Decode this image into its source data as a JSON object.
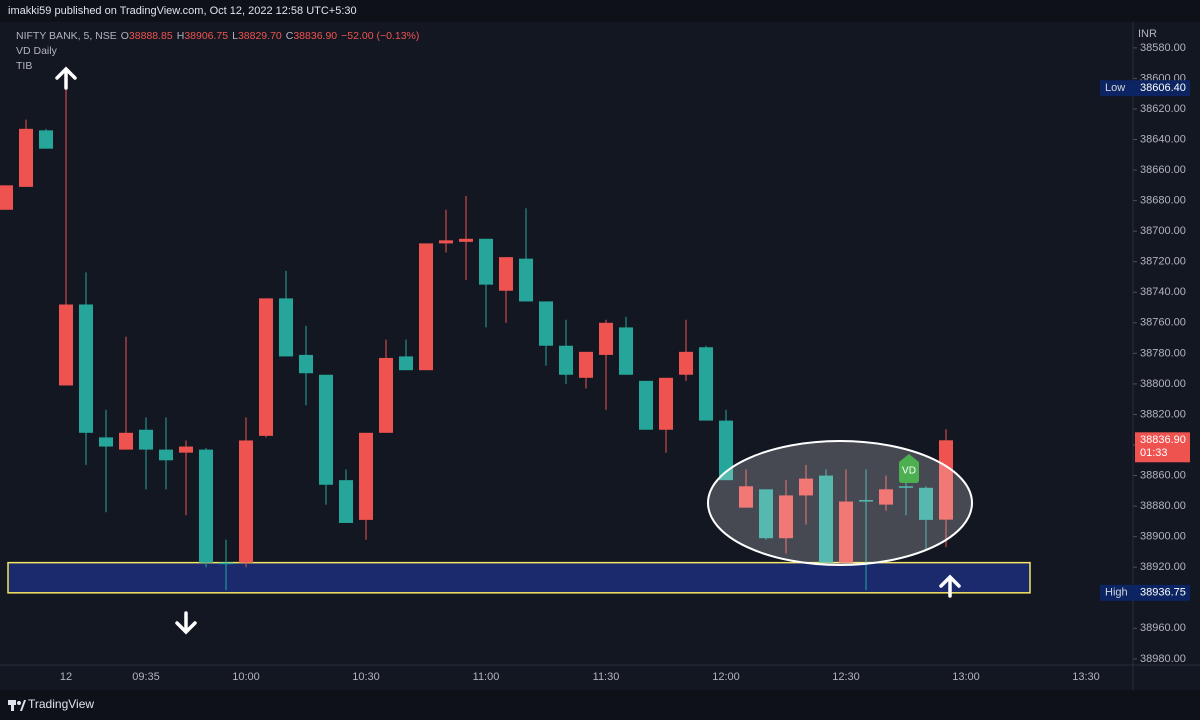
{
  "page": {
    "publisher": "imakki59 published on TradingView.com, Oct 12, 2022 12:58 UTC+5:30",
    "footer": "TradingView"
  },
  "legend": {
    "symbol": "NIFTY BANK, 5, NSE",
    "ohlc": [
      {
        "key": "O",
        "value": "38888.85"
      },
      {
        "key": "H",
        "value": "38906.75"
      },
      {
        "key": "L",
        "value": "38829.70"
      },
      {
        "key": "C",
        "value": "38836.90"
      }
    ],
    "change": "−52.00 (−0.13%)",
    "indicators": [
      "VD Daily",
      "TIB"
    ]
  },
  "chart_data": {
    "type": "candlestick",
    "axis_unit": "INR",
    "inverted": true,
    "up_color": "#26a69a",
    "down_color": "#ef5350",
    "categories": [
      null,
      null,
      null,
      "12",
      null,
      null,
      null,
      "09:35",
      null,
      null,
      null,
      null,
      "10:00",
      null,
      null,
      null,
      null,
      null,
      "10:30",
      null,
      null,
      null,
      null,
      null,
      "11:00",
      null,
      null,
      null,
      null,
      null,
      "11:30",
      null,
      null,
      null,
      null,
      null,
      "12:00",
      null,
      null,
      null,
      null,
      null,
      "12:30",
      null,
      null,
      null,
      null,
      null,
      "13:00",
      null,
      null,
      null,
      null,
      null,
      "13:30",
      null,
      null
    ],
    "open": [
      38686,
      38671,
      38634,
      38801,
      38748,
      38835,
      38843,
      38830,
      38843,
      38845,
      38843,
      38917,
      38917,
      38834,
      38744,
      38781,
      38794,
      38863,
      38889,
      38832,
      38782,
      38791,
      38708,
      38707,
      38705,
      38739,
      38718,
      38746,
      38775,
      38796,
      38781,
      38763,
      38798,
      38830,
      38794,
      38776,
      38824,
      38881,
      38869,
      38901,
      38873,
      38860,
      38917,
      38876,
      38879,
      38867,
      38868,
      38888.85,
      null,
      null,
      null,
      null,
      null,
      null,
      null,
      null,
      null
    ],
    "high": [
      38686,
      38671,
      38646,
      38801,
      38853,
      38884,
      38843,
      38869,
      38869,
      38886,
      38920,
      38935,
      38920,
      38835,
      38782,
      38814,
      38879,
      38891,
      38902,
      38832,
      38791,
      38791,
      38714,
      38732,
      38763,
      38760,
      38746,
      38788,
      38800,
      38803,
      38817,
      38794,
      38830,
      38845,
      38798,
      38824,
      38863,
      38881,
      38902,
      38911,
      38892,
      38917,
      38917,
      38935,
      38883,
      38886,
      38909,
      38906.75,
      null,
      null,
      null,
      null,
      null,
      null,
      null,
      null,
      null
    ],
    "low": [
      38670,
      38627,
      38633,
      38605,
      38727,
      38817,
      38769,
      38822,
      38822,
      38837,
      38842,
      38902,
      38822,
      38744,
      38726,
      38762,
      38794,
      38856,
      38832,
      38771,
      38771,
      38708,
      38686,
      38677,
      38705,
      38717,
      38685,
      38746,
      38758,
      38779,
      38758,
      38756,
      38798,
      38796,
      38758,
      38775,
      38817,
      38856,
      38869,
      38863,
      38853,
      38856,
      38856,
      38856,
      38860,
      38863,
      38867,
      38829.7,
      null,
      null,
      null,
      null,
      null,
      null,
      null,
      null,
      null
    ],
    "close": [
      38670,
      38633,
      38646,
      38748,
      38832,
      38841,
      38832,
      38843,
      38850,
      38841,
      38917,
      38918,
      38837,
      38744,
      38782,
      38793,
      38866,
      38891,
      38832,
      38783,
      38791,
      38708,
      38706,
      38705,
      38735,
      38717,
      38746,
      38775,
      38794,
      38779,
      38760,
      38794,
      38830,
      38796,
      38779,
      38824,
      38863,
      38867,
      38901,
      38873,
      38862,
      38917,
      38877,
      38877,
      38869,
      38868,
      38889,
      38836.9,
      null,
      null,
      null,
      null,
      null,
      null,
      null,
      null,
      null
    ],
    "ylim": [
      38567,
      38984
    ],
    "yticks": [
      {
        "value": 38580,
        "label": "38580.00"
      },
      {
        "value": 38600,
        "label": "38600.00"
      },
      {
        "value": 38620,
        "label": "38620.00"
      },
      {
        "value": 38640,
        "label": "38640.00"
      },
      {
        "value": 38660,
        "label": "38660.00"
      },
      {
        "value": 38680,
        "label": "38680.00"
      },
      {
        "value": 38700,
        "label": "38700.00"
      },
      {
        "value": 38720,
        "label": "38720.00"
      },
      {
        "value": 38740,
        "label": "38740.00"
      },
      {
        "value": 38760,
        "label": "38760.00"
      },
      {
        "value": 38780,
        "label": "38780.00"
      },
      {
        "value": 38800,
        "label": "38800.00"
      },
      {
        "value": 38820,
        "label": "38820.00"
      },
      {
        "value": 38840,
        "label": "38840.00"
      },
      {
        "value": 38860,
        "label": "38860.00"
      },
      {
        "value": 38880,
        "label": "38880.00"
      },
      {
        "value": 38900,
        "label": "38900.00"
      },
      {
        "value": 38920,
        "label": "38920.00"
      },
      {
        "value": 38940,
        "label": "38940.00"
      },
      {
        "value": 38960,
        "label": "38960.00"
      },
      {
        "value": 38980,
        "label": "38980.00"
      }
    ],
    "zone": [
      38917,
      38936.75
    ],
    "marker": "VD",
    "price_labels": [
      {
        "name": "Low",
        "value": 38606.4,
        "value_label": "38606.40"
      },
      {
        "name": "High",
        "value": 38936.75,
        "value_label": "38936.75"
      }
    ],
    "last_price": {
      "value": 38836.9,
      "label": "38836.90",
      "countdown": "01:33"
    }
  }
}
